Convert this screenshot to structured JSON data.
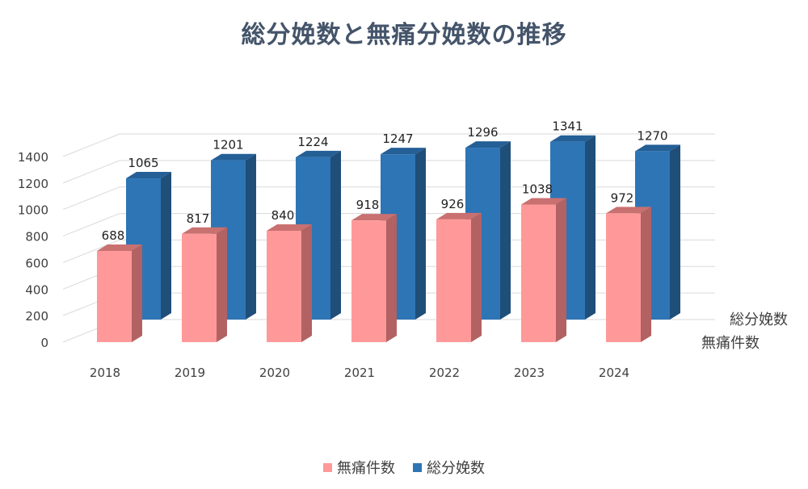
{
  "colors": {
    "title": "#44546a",
    "grid": "#d9d9d9",
    "text": "#404040",
    "painless_front": "#ff9999",
    "painless_side": "#b26262",
    "painless_top": "#c97070",
    "total_front": "#2e75b6",
    "total_side": "#1f4e79",
    "total_top": "#245f96"
  },
  "chart_data": {
    "type": "bar",
    "title": "総分娩数と無痛分娩数の推移",
    "categories": [
      "2018",
      "2019",
      "2020",
      "2021",
      "2022",
      "2023",
      "2024"
    ],
    "series": [
      {
        "name": "無痛件数",
        "values": [
          688,
          817,
          840,
          918,
          926,
          1038,
          972
        ]
      },
      {
        "name": "総分娩数",
        "values": [
          1065,
          1201,
          1224,
          1247,
          1296,
          1341,
          1270
        ]
      }
    ],
    "yticks": [
      "0",
      "200",
      "400",
      "600",
      "800",
      "1000",
      "1200",
      "1400"
    ],
    "ylim": [
      0,
      1400
    ],
    "depth_axis_labels": [
      "総分娩数",
      "無痛件数"
    ],
    "grid": true,
    "legend": "bottom"
  }
}
